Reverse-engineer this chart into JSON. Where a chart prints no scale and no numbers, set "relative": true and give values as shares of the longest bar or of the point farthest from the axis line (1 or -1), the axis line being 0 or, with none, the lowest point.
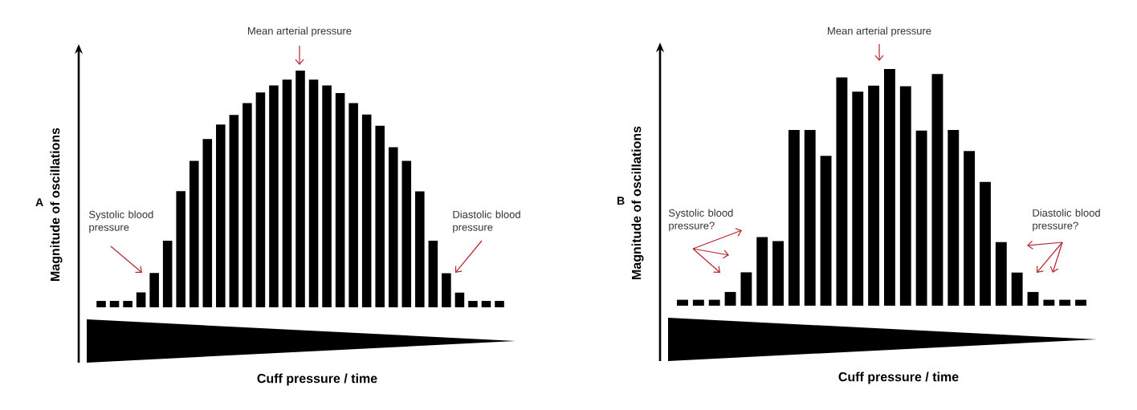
{
  "chart_data": [
    {
      "type": "bar",
      "title": "A",
      "xlabel": "Cuff pressure / time",
      "ylabel": "Magnitude of oscillations",
      "relative": true,
      "color": "#000000",
      "categories": [
        null,
        null,
        null,
        null,
        null,
        null,
        null,
        null,
        null,
        null,
        null,
        null,
        null,
        null,
        null,
        null,
        null,
        null,
        null,
        null,
        null,
        null,
        null,
        null,
        null,
        null,
        null,
        null,
        null,
        null,
        null
      ],
      "values": [
        0.027,
        0.027,
        0.027,
        0.063,
        0.145,
        0.281,
        0.491,
        0.619,
        0.711,
        0.772,
        0.813,
        0.863,
        0.908,
        0.937,
        0.962,
        1,
        0.962,
        0.937,
        0.905,
        0.863,
        0.814,
        0.767,
        0.676,
        0.619,
        0.49,
        0.281,
        0.144,
        0.062,
        0.027,
        0.027,
        0.027
      ],
      "annotations": [
        "Mean arterial pressure",
        "Systolic blood pressure",
        "Diastolic blood pressure"
      ]
    },
    {
      "type": "bar",
      "title": "B",
      "xlabel": "Cuff pressure / time",
      "ylabel": "Magnitude of oscillations",
      "relative": true,
      "color": "#000000",
      "categories": [
        null,
        null,
        null,
        null,
        null,
        null,
        null,
        null,
        null,
        null,
        null,
        null,
        null,
        null,
        null,
        null,
        null,
        null,
        null,
        null,
        null,
        null,
        null,
        null,
        null,
        null
      ],
      "values": [
        0.025,
        0.025,
        0.025,
        0.058,
        0.141,
        0.29,
        0.273,
        0.742,
        0.742,
        0.633,
        0.964,
        0.904,
        0.93,
        1,
        0.927,
        0.74,
        0.979,
        0.742,
        0.653,
        0.523,
        0.269,
        0.14,
        0.058,
        0.025,
        0.025,
        0.025
      ],
      "annotations": [
        "Mean arterial pressure",
        "Systolic blood pressure?",
        "Diastolic blood pressure?"
      ]
    }
  ]
}
